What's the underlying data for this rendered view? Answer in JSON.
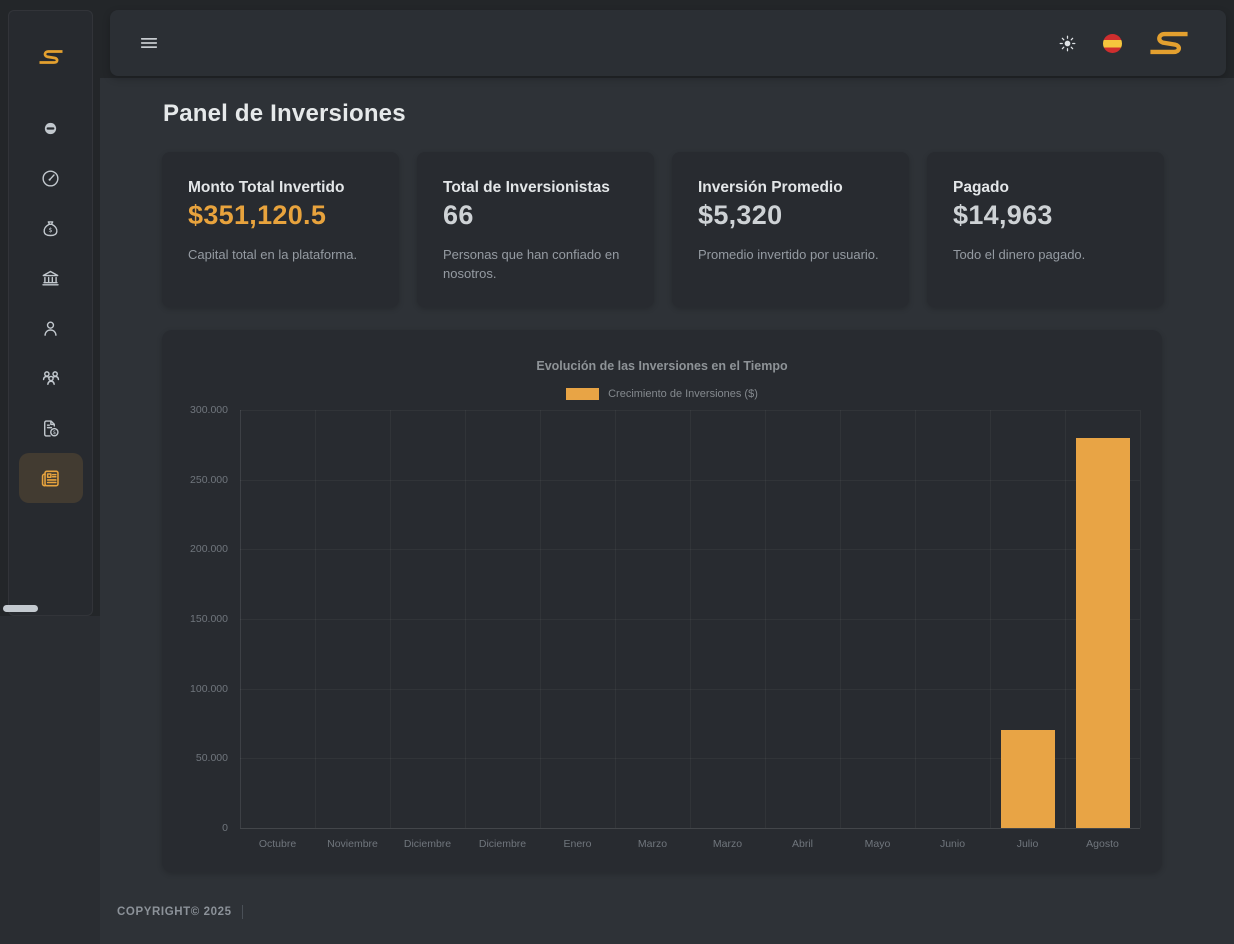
{
  "theme": {
    "accent": "#e8a33d",
    "bar_color": "#e8a445",
    "panel_bg": "#282b30",
    "sidebar_bg": "#272a2f",
    "page_bg": "#2e3237",
    "flag_red": "#cf2e2e",
    "flag_yellow": "#f5c53d"
  },
  "sidebar": {
    "brand_icon": "brand-s-logo",
    "items": [
      {
        "icon": "coin-icon",
        "active": false
      },
      {
        "icon": "gauge-icon",
        "active": false
      },
      {
        "icon": "money-bag-icon",
        "active": false
      },
      {
        "icon": "bank-icon",
        "active": false
      },
      {
        "icon": "user-icon",
        "active": false
      },
      {
        "icon": "users-icon",
        "active": false
      },
      {
        "icon": "invoice-icon",
        "active": false
      },
      {
        "icon": "news-icon",
        "active": true
      }
    ]
  },
  "header": {
    "menu_icon": "menu-icon",
    "theme_icon": "sun-icon",
    "language_icon": "spain-flag-icon",
    "brand_icon": "brand-s-logo"
  },
  "page": {
    "title": "Panel de Inversiones"
  },
  "cards": [
    {
      "label": "Monto Total Invertido",
      "value": "$351,120.5",
      "value_accent": true,
      "description": "Capital total en la plataforma."
    },
    {
      "label": "Total de Inversionistas",
      "value": "66",
      "value_accent": false,
      "description": "Personas que han confiado en nosotros."
    },
    {
      "label": "Inversión Promedio",
      "value": "$5,320",
      "value_accent": false,
      "description": "Promedio invertido por usuario."
    },
    {
      "label": "Pagado",
      "value": "$14,963",
      "value_accent": false,
      "description": "Todo el dinero pagado."
    }
  ],
  "chart_data": {
    "type": "bar",
    "title": "Evolución de las Inversiones en el Tiempo",
    "legend": "Crecimiento de Inversiones ($)",
    "legend_position": "top",
    "categories": [
      "Octubre",
      "Noviembre",
      "Diciembre",
      "Diciembre",
      "Enero",
      "Marzo",
      "Marzo",
      "Abril",
      "Mayo",
      "Junio",
      "Julio",
      "Agosto"
    ],
    "values": [
      0,
      0,
      0,
      0,
      0,
      0,
      0,
      0,
      0,
      0,
      70000,
      280000
    ],
    "ylim": [
      0,
      300000
    ],
    "ytick_step": 50000,
    "ytick_labels": [
      "0",
      "50.000",
      "100.000",
      "150.000",
      "200.000",
      "250.000",
      "300.000"
    ],
    "grid": true,
    "bar_color": "#e8a445"
  },
  "footer": {
    "copyright": "COPYRIGHT© 2025"
  }
}
